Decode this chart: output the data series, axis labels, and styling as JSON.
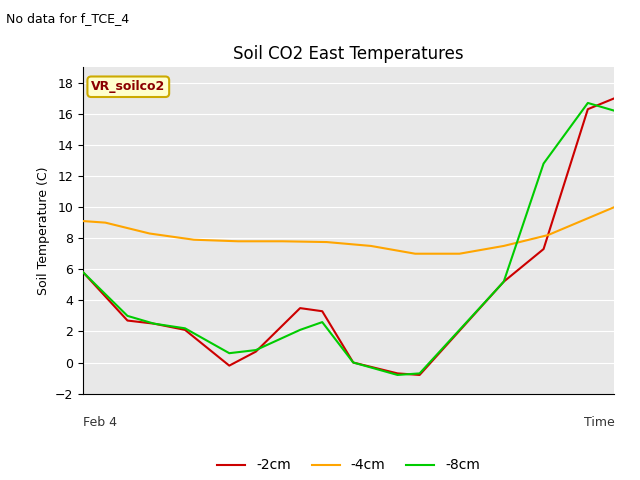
{
  "title": "Soil CO2 East Temperatures",
  "no_data_text": "No data for f_TCE_4",
  "xlabel": "Time",
  "ylabel": "Soil Temperature (C)",
  "vr_label": "VR_soilco2",
  "ylim": [
    -2,
    19
  ],
  "yticks": [
    -2,
    0,
    2,
    4,
    6,
    8,
    10,
    12,
    14,
    16,
    18
  ],
  "xstart_label": "Feb 4",
  "background_color": "#e8e8e8",
  "x_2cm": [
    0,
    1.0,
    1.6,
    2.3,
    3.3,
    3.9,
    4.9,
    5.4,
    6.1,
    7.1,
    7.6,
    9.5,
    10.4,
    11.4,
    12.0
  ],
  "y_2cm": [
    5.8,
    2.7,
    2.5,
    2.1,
    -0.2,
    0.7,
    3.5,
    3.3,
    0.0,
    -0.7,
    -0.8,
    5.2,
    7.3,
    16.3,
    17.0
  ],
  "x_4cm": [
    0,
    0.5,
    1.5,
    2.5,
    3.5,
    4.5,
    5.5,
    6.5,
    7.5,
    8.5,
    9.5,
    10.5,
    12.0
  ],
  "y_4cm": [
    9.1,
    9.0,
    8.3,
    7.9,
    7.8,
    7.8,
    7.75,
    7.5,
    7.0,
    7.0,
    7.5,
    8.2,
    10.0
  ],
  "x_8cm": [
    0,
    1.0,
    1.6,
    2.3,
    3.3,
    3.9,
    4.9,
    5.4,
    6.1,
    7.1,
    7.6,
    9.5,
    10.4,
    11.4,
    12.0
  ],
  "y_8cm": [
    5.8,
    3.0,
    2.5,
    2.2,
    0.6,
    0.8,
    2.1,
    2.6,
    0.0,
    -0.8,
    -0.7,
    5.2,
    12.8,
    16.7,
    16.2
  ],
  "color_2cm": "#cc0000",
  "color_4cm": "#ffa500",
  "color_8cm": "#00cc00",
  "label_2cm": "-2cm",
  "label_4cm": "-4cm",
  "label_8cm": "-8cm",
  "linewidth": 1.5,
  "title_fontsize": 12,
  "label_fontsize": 9,
  "tick_fontsize": 9
}
